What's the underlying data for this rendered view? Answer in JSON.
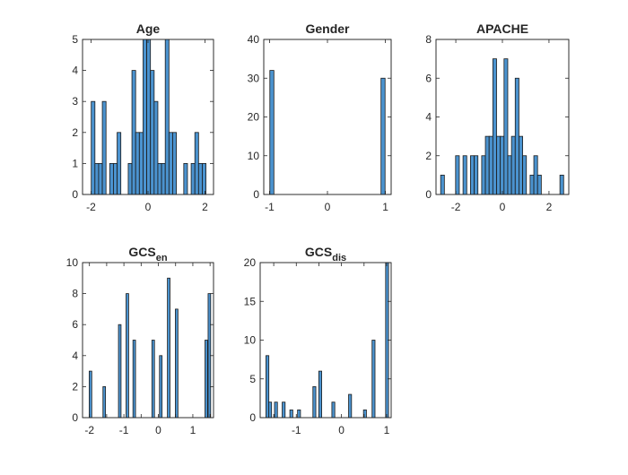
{
  "chart_data": [
    {
      "type": "bar",
      "title": "Age",
      "xlim": [
        -2.3,
        2.3
      ],
      "ylim": [
        0,
        5
      ],
      "xticks": [
        -2,
        0,
        2
      ],
      "xtick_labels": [
        "-2",
        "0",
        "2"
      ],
      "yticks": [
        0,
        1,
        2,
        3,
        4,
        5
      ],
      "ytick_labels": [
        "0",
        "1",
        "2",
        "3",
        "4",
        "5"
      ],
      "bar_width": 0.13,
      "x": [
        -1.93,
        -1.8,
        -1.67,
        -1.54,
        -1.28,
        -1.15,
        -1.02,
        -0.89,
        -0.63,
        -0.5,
        -0.37,
        -0.24,
        -0.11,
        0.02,
        0.15,
        0.28,
        0.41,
        0.54,
        0.67,
        0.8,
        0.93,
        1.06,
        1.32,
        1.58,
        1.71,
        1.84,
        1.97
      ],
      "values": [
        3,
        1,
        1,
        3,
        1,
        1,
        2,
        0,
        1,
        4,
        2,
        2,
        5,
        5,
        4,
        3,
        1,
        1,
        5,
        2,
        2,
        0,
        1,
        1,
        2,
        1,
        1
      ]
    },
    {
      "type": "bar",
      "title": "Gender",
      "xlim": [
        -1.1,
        1.1
      ],
      "ylim": [
        0,
        40
      ],
      "xticks": [
        -1,
        0,
        1
      ],
      "xtick_labels": [
        "-1",
        "0",
        "1"
      ],
      "yticks": [
        0,
        10,
        20,
        30,
        40
      ],
      "ytick_labels": [
        "0",
        "10",
        "20",
        "30",
        "40"
      ],
      "bar_width": 0.07,
      "x": [
        -0.96,
        0.96
      ],
      "values": [
        32,
        30
      ]
    },
    {
      "type": "bar",
      "title": "APACHE",
      "xlim": [
        -2.85,
        2.85
      ],
      "ylim": [
        0,
        8
      ],
      "xticks": [
        -2,
        0,
        2
      ],
      "xtick_labels": [
        "-2",
        "0",
        "2"
      ],
      "yticks": [
        0,
        2,
        4,
        6,
        8
      ],
      "ytick_labels": [
        "0",
        "2",
        "4",
        "6",
        "8"
      ],
      "bar_width": 0.16,
      "x": [
        -2.57,
        -2.09,
        -1.93,
        -1.61,
        -1.45,
        -1.29,
        -1.13,
        -0.97,
        -0.81,
        -0.65,
        -0.49,
        -0.33,
        -0.17,
        -0.01,
        0.15,
        0.31,
        0.47,
        0.63,
        0.79,
        0.95,
        1.27,
        1.43,
        1.59,
        2.55
      ],
      "values": [
        1,
        0,
        2,
        2,
        0,
        2,
        2,
        0,
        2,
        3,
        3,
        7,
        3,
        3,
        7,
        2,
        3,
        6,
        3,
        2,
        1,
        2,
        1,
        1
      ]
    },
    {
      "type": "bar",
      "title": "GCS",
      "title_subscript": "en",
      "xlim": [
        -2.2,
        1.6
      ],
      "ylim": [
        0,
        10
      ],
      "xticks": [
        -2,
        -1.5,
        -1,
        -0.5,
        0,
        0.5,
        1,
        1.5
      ],
      "xtick_labels": [
        "-2",
        "",
        "-1",
        "",
        "0",
        "",
        "1",
        ""
      ],
      "yticks": [
        0,
        2,
        4,
        6,
        8,
        10
      ],
      "ytick_labels": [
        "0",
        "2",
        "4",
        "6",
        "8",
        "10"
      ],
      "bar_width": 0.075,
      "x": [
        -1.97,
        -1.57,
        -1.12,
        -0.9,
        -0.7,
        -0.37,
        -0.15,
        0.07,
        0.3,
        0.53,
        1.39,
        1.48
      ],
      "values": [
        3,
        2,
        6,
        8,
        5,
        0,
        5,
        4,
        9,
        7,
        5,
        8
      ]
    },
    {
      "type": "bar",
      "title": "GCS",
      "title_subscript": "dis",
      "xlim": [
        -1.8,
        1.1
      ],
      "ylim": [
        0,
        20
      ],
      "xticks": [
        -1.5,
        -1,
        -0.5,
        0,
        0.5,
        1
      ],
      "xtick_labels": [
        "",
        "-1",
        "",
        "0",
        "",
        "1"
      ],
      "yticks": [
        0,
        5,
        10,
        15,
        20
      ],
      "ytick_labels": [
        "0",
        "5",
        "10",
        "15",
        "20"
      ],
      "bar_width": 0.065,
      "x": [
        -1.64,
        -1.58,
        -1.45,
        -1.28,
        -1.11,
        -0.94,
        -0.77,
        -0.6,
        -0.47,
        -0.18,
        0.19,
        0.52,
        0.71,
        1.01
      ],
      "values": [
        8,
        2,
        2,
        2,
        1,
        1,
        0,
        4,
        6,
        2,
        3,
        1,
        10,
        20
      ]
    }
  ],
  "colors": {
    "bar_fill": "#4b93cf",
    "bar_edge": "#1a1a1a",
    "axis": "#262626"
  }
}
